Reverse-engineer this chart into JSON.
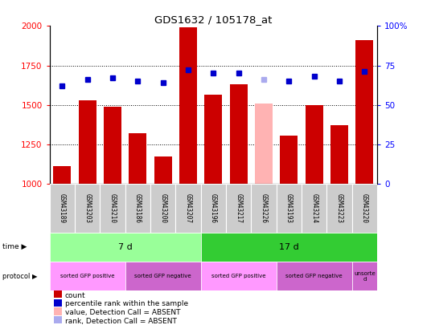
{
  "title": "GDS1632 / 105178_at",
  "samples": [
    "GSM43189",
    "GSM43203",
    "GSM43210",
    "GSM43186",
    "GSM43200",
    "GSM43207",
    "GSM43196",
    "GSM43217",
    "GSM43226",
    "GSM43193",
    "GSM43214",
    "GSM43223",
    "GSM43220"
  ],
  "bar_values": [
    1110,
    1530,
    1490,
    1320,
    1170,
    1990,
    1565,
    1630,
    1510,
    1305,
    1500,
    1370,
    1910
  ],
  "bar_colors": [
    "#cc0000",
    "#cc0000",
    "#cc0000",
    "#cc0000",
    "#cc0000",
    "#cc0000",
    "#cc0000",
    "#cc0000",
    "#ffb3b3",
    "#cc0000",
    "#cc0000",
    "#cc0000",
    "#cc0000"
  ],
  "rank_values": [
    62,
    66,
    67,
    65,
    64,
    72,
    70,
    70,
    66,
    65,
    68,
    65,
    71
  ],
  "rank_colors": [
    "#0000cc",
    "#0000cc",
    "#0000cc",
    "#0000cc",
    "#0000cc",
    "#0000cc",
    "#0000cc",
    "#0000cc",
    "#aaaaee",
    "#0000cc",
    "#0000cc",
    "#0000cc",
    "#0000cc"
  ],
  "ylim_left": [
    1000,
    2000
  ],
  "ylim_right": [
    0,
    100
  ],
  "yticks_left": [
    1000,
    1250,
    1500,
    1750,
    2000
  ],
  "yticks_right": [
    0,
    25,
    50,
    75,
    100
  ],
  "time_groups": [
    {
      "label": "7 d",
      "start": 0,
      "end": 6,
      "color": "#99ff99"
    },
    {
      "label": "17 d",
      "start": 6,
      "end": 13,
      "color": "#33cc33"
    }
  ],
  "protocol_groups": [
    {
      "label": "sorted GFP positive",
      "start": 0,
      "end": 3,
      "color": "#ff99ff"
    },
    {
      "label": "sorted GFP negative",
      "start": 3,
      "end": 6,
      "color": "#cc66cc"
    },
    {
      "label": "sorted GFP positive",
      "start": 6,
      "end": 9,
      "color": "#ff99ff"
    },
    {
      "label": "sorted GFP negative",
      "start": 9,
      "end": 12,
      "color": "#cc66cc"
    },
    {
      "label": "unsorte\nd",
      "start": 12,
      "end": 13,
      "color": "#cc66cc"
    }
  ],
  "legend_items": [
    {
      "label": "count",
      "color": "#cc0000"
    },
    {
      "label": "percentile rank within the sample",
      "color": "#0000cc"
    },
    {
      "label": "value, Detection Call = ABSENT",
      "color": "#ffb3b3"
    },
    {
      "label": "rank, Detection Call = ABSENT",
      "color": "#aaaaee"
    }
  ]
}
